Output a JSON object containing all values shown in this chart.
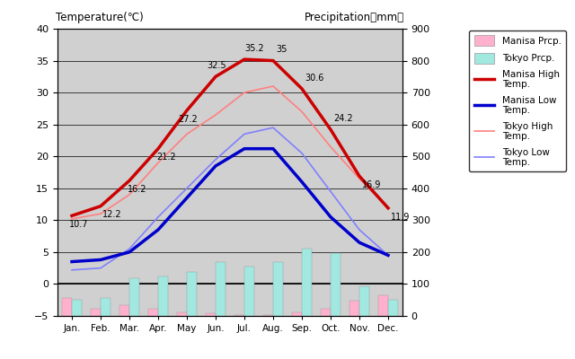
{
  "months": [
    "Jan.",
    "Feb.",
    "Mar.",
    "Apr.",
    "May",
    "Jun.",
    "Jul.",
    "Aug.",
    "Sep.",
    "Oct.",
    "Nov.",
    "Dec."
  ],
  "manisa_high": [
    10.7,
    12.2,
    16.2,
    21.2,
    27.2,
    32.5,
    35.2,
    35.0,
    30.6,
    24.2,
    16.9,
    11.9
  ],
  "manisa_low": [
    3.5,
    3.8,
    5.0,
    8.5,
    13.5,
    18.5,
    21.2,
    21.2,
    16.0,
    10.5,
    6.5,
    4.5
  ],
  "tokyo_high": [
    10.2,
    11.0,
    14.0,
    19.0,
    23.5,
    26.5,
    30.0,
    31.0,
    27.0,
    21.5,
    16.5,
    12.0
  ],
  "tokyo_low": [
    2.2,
    2.5,
    5.5,
    10.5,
    15.0,
    19.5,
    23.5,
    24.5,
    20.5,
    14.5,
    8.5,
    4.5
  ],
  "manisa_precip_mm": [
    55,
    22,
    35,
    22,
    12,
    8,
    3,
    3,
    12,
    22,
    48,
    65
  ],
  "tokyo_precip_mm": [
    52,
    56,
    117,
    125,
    138,
    168,
    154,
    168,
    210,
    197,
    93,
    51
  ],
  "manisa_high_labels": [
    "10.7",
    "12.2",
    "16.2",
    "21.2",
    "27.2",
    "32.5",
    "35.2",
    "35",
    "30.6",
    "24.2",
    "16.9",
    "11.9"
  ],
  "title_left": "Temperature(℃)",
  "title_right": "Precipitation（mm）",
  "bg_color": "#d0d0d0",
  "manisa_high_color": "#cc0000",
  "manisa_low_color": "#0000cc",
  "tokyo_high_color": "#ff8080",
  "tokyo_low_color": "#8080ff",
  "manisa_precip_color": "#ffb0cc",
  "tokyo_precip_color": "#a0e8e0",
  "ylim_temp": [
    -5,
    40
  ],
  "ylim_precip": [
    0,
    900
  ],
  "temp_ticks": [
    -5,
    0,
    5,
    10,
    15,
    20,
    25,
    30,
    35,
    40
  ],
  "precip_ticks": [
    0,
    100,
    200,
    300,
    400,
    500,
    600,
    700,
    800,
    900
  ],
  "legend_labels": [
    "Manisa Prcp.",
    "Tokyo Prcp.",
    "Manisa High\nTemp.",
    "Manisa Low\nTemp.",
    "Tokyo High\nTemp.",
    "Tokyo Low\nTemp."
  ]
}
